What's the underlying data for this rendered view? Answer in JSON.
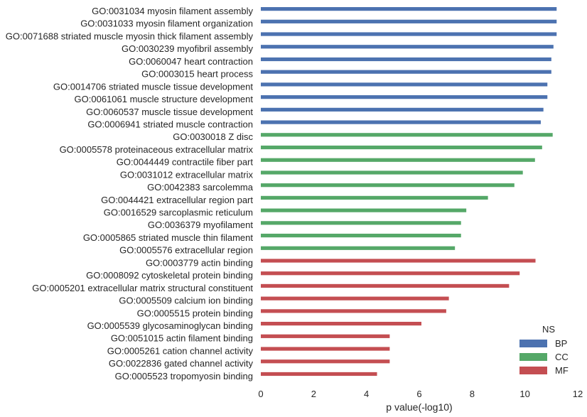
{
  "chart_data": {
    "type": "bar",
    "orientation": "horizontal",
    "title": "",
    "xlabel": "p value(-log10)",
    "ylabel": "",
    "xlim": [
      0,
      12
    ],
    "xticks": [
      "0",
      "2",
      "4",
      "6",
      "8",
      "10",
      "12"
    ],
    "grid": false,
    "legend": {
      "title": "NS",
      "position": "bottom-right",
      "entries": [
        {
          "name": "BP",
          "color": "#4c72b0"
        },
        {
          "name": "CC",
          "color": "#55a868"
        },
        {
          "name": "MF",
          "color": "#c44e52"
        }
      ]
    },
    "bars": [
      {
        "label": "GO:0031034 myosin filament assembly",
        "group": "BP",
        "value": 11.2
      },
      {
        "label": "GO:0031033 myosin filament organization",
        "group": "BP",
        "value": 11.2
      },
      {
        "label": "GO:0071688 striated muscle myosin thick filament assembly",
        "group": "BP",
        "value": 11.2
      },
      {
        "label": "GO:0030239 myofibril assembly",
        "group": "BP",
        "value": 11.08
      },
      {
        "label": "GO:0060047 heart contraction",
        "group": "BP",
        "value": 11.0
      },
      {
        "label": "GO:0003015 heart process",
        "group": "BP",
        "value": 11.0
      },
      {
        "label": "GO:0014706 striated muscle tissue development",
        "group": "BP",
        "value": 10.85
      },
      {
        "label": "GO:0061061 muscle structure development",
        "group": "BP",
        "value": 10.85
      },
      {
        "label": "GO:0060537 muscle tissue development",
        "group": "BP",
        "value": 10.7
      },
      {
        "label": "GO:0006941 striated muscle contraction",
        "group": "BP",
        "value": 10.6
      },
      {
        "label": "GO:0030018 Z disc",
        "group": "CC",
        "value": 11.05
      },
      {
        "label": "GO:0005578 proteinaceous extracellular matrix",
        "group": "CC",
        "value": 10.65
      },
      {
        "label": "GO:0044449 contractile fiber part",
        "group": "CC",
        "value": 10.38
      },
      {
        "label": "GO:0031012 extracellular matrix",
        "group": "CC",
        "value": 9.92
      },
      {
        "label": "GO:0042383 sarcolemma",
        "group": "CC",
        "value": 9.6
      },
      {
        "label": "GO:0044421 extracellular region part",
        "group": "CC",
        "value": 8.6
      },
      {
        "label": "GO:0016529 sarcoplasmic reticulum",
        "group": "CC",
        "value": 7.78
      },
      {
        "label": "GO:0036379 myofilament",
        "group": "CC",
        "value": 7.58
      },
      {
        "label": "GO:0005865 striated muscle thin filament",
        "group": "CC",
        "value": 7.58
      },
      {
        "label": "GO:0005576 extracellular region",
        "group": "CC",
        "value": 7.35
      },
      {
        "label": "GO:0003779 actin binding",
        "group": "MF",
        "value": 10.4
      },
      {
        "label": "GO:0008092 cytoskeletal protein binding",
        "group": "MF",
        "value": 9.8
      },
      {
        "label": "GO:0005201 extracellular matrix structural constituent",
        "group": "MF",
        "value": 9.4
      },
      {
        "label": "GO:0005509 calcium ion binding",
        "group": "MF",
        "value": 7.12
      },
      {
        "label": "GO:0005515 protein binding",
        "group": "MF",
        "value": 7.02
      },
      {
        "label": "GO:0005539 glycosaminoglycan binding",
        "group": "MF",
        "value": 6.08
      },
      {
        "label": "GO:0051015 actin filament binding",
        "group": "MF",
        "value": 4.88
      },
      {
        "label": "GO:0005261 cation channel activity",
        "group": "MF",
        "value": 4.88
      },
      {
        "label": "GO:0022836 gated channel activity",
        "group": "MF",
        "value": 4.88
      },
      {
        "label": "GO:0005523 tropomyosin binding",
        "group": "MF",
        "value": 4.4
      }
    ]
  }
}
